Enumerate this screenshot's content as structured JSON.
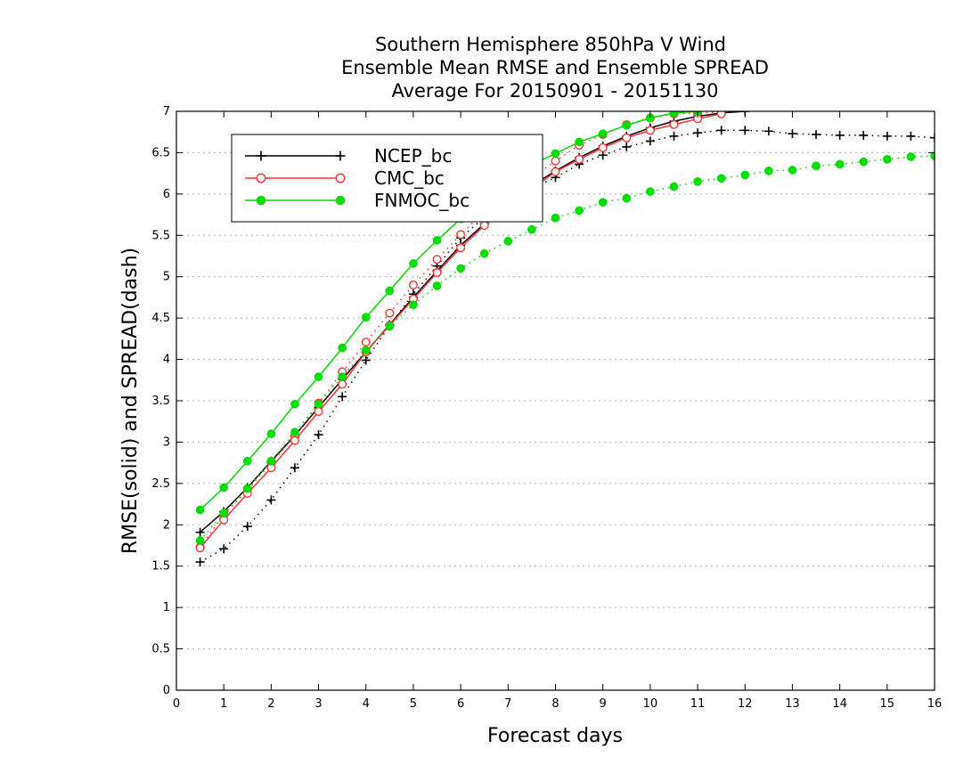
{
  "chart_data": {
    "type": "line",
    "title": [
      "Southern Hemisphere 850hPa V Wind",
      "Ensemble Mean RMSE and Ensemble SPREAD",
      "Average For 20150901 - 20151130"
    ],
    "xlabel": "Forecast days",
    "ylabel": "RMSE(solid) and SPREAD(dash)",
    "xlim": [
      0,
      16
    ],
    "ylim": [
      0,
      7
    ],
    "xticks": [
      "0",
      "1",
      "2",
      "3",
      "4",
      "5",
      "6",
      "7",
      "8",
      "9",
      "10",
      "11",
      "12",
      "13",
      "14",
      "15",
      "16"
    ],
    "yticks": [
      "0",
      "0.5",
      "1",
      "1.5",
      "2",
      "2.5",
      "3",
      "3.5",
      "4",
      "4.5",
      "5",
      "5.5",
      "6",
      "6.5",
      "7"
    ],
    "grid": "horizontal dotted",
    "legend_position": "upper-left",
    "series": [
      {
        "name": "NCEP_bc",
        "color": "#000000",
        "marker": "plus",
        "rmse": {
          "x": [
            0.5,
            1,
            1.5,
            2,
            2.5,
            3,
            3.5,
            4,
            4.5,
            5,
            5.5,
            6,
            6.5,
            7,
            7.5,
            8,
            8.5,
            9,
            9.5,
            10,
            10.5,
            11,
            11.5,
            12
          ],
          "y": [
            1.91,
            2.16,
            2.45,
            2.77,
            3.08,
            3.42,
            3.76,
            4.09,
            4.42,
            4.75,
            5.07,
            5.38,
            5.64,
            5.88,
            6.1,
            6.28,
            6.44,
            6.58,
            6.7,
            6.8,
            6.88,
            6.94,
            6.98,
            7.0
          ]
        },
        "spread": {
          "x": [
            0.5,
            1,
            1.5,
            2,
            2.5,
            3,
            3.5,
            4,
            4.5,
            5,
            5.5,
            6,
            6.5,
            7,
            7.5,
            8,
            8.5,
            9,
            9.5,
            10,
            10.5,
            11,
            11.5,
            12,
            12.5,
            13,
            13.5,
            14,
            14.5,
            15,
            15.5,
            16
          ],
          "y": [
            1.55,
            1.71,
            1.98,
            2.3,
            2.69,
            3.09,
            3.55,
            3.99,
            4.41,
            4.79,
            5.13,
            5.47,
            5.72,
            5.92,
            6.07,
            6.2,
            6.36,
            6.47,
            6.57,
            6.64,
            6.7,
            6.74,
            6.77,
            6.77,
            6.76,
            6.73,
            6.72,
            6.71,
            6.71,
            6.7,
            6.7,
            6.68
          ]
        }
      },
      {
        "name": "CMC_bc",
        "color": "#ff3333",
        "marker": "open-circle",
        "rmse": {
          "x": [
            0.5,
            1,
            1.5,
            2,
            2.5,
            3,
            3.5,
            4,
            4.5,
            5,
            5.5,
            6,
            6.5,
            7,
            7.5,
            8,
            8.5,
            9,
            9.5,
            10,
            10.5,
            11,
            11.5
          ],
          "y": [
            1.72,
            2.06,
            2.38,
            2.69,
            3.02,
            3.37,
            3.7,
            4.09,
            4.41,
            4.73,
            5.05,
            5.35,
            5.62,
            5.84,
            6.06,
            6.27,
            6.42,
            6.56,
            6.68,
            6.77,
            6.84,
            6.91,
            6.97
          ]
        },
        "spread": {
          "x": [
            0.5,
            1,
            1.5,
            2,
            2.5,
            3,
            3.5,
            4,
            4.5,
            5,
            5.5,
            6,
            6.5,
            7,
            7.5,
            8,
            8.5,
            9,
            9.5,
            10,
            10.5,
            11,
            11.5
          ],
          "y": [
            1.73,
            2.12,
            2.42,
            2.75,
            3.07,
            3.47,
            3.85,
            4.21,
            4.56,
            4.9,
            5.21,
            5.51,
            5.79,
            6.03,
            6.2,
            6.4,
            6.59,
            6.72,
            6.84,
            6.92,
            6.97,
            6.98,
            6.99
          ]
        }
      },
      {
        "name": "FNMOC_bc",
        "color": "#00dd00",
        "marker": "filled-circle",
        "rmse": {
          "x": [
            0.5,
            1,
            1.5,
            2,
            2.5,
            3,
            3.5,
            4,
            4.5,
            5,
            5.5,
            6,
            6.5,
            7,
            7.5,
            8,
            8.5,
            9,
            9.5,
            10,
            10.5,
            11
          ],
          "y": [
            2.18,
            2.45,
            2.77,
            3.1,
            3.46,
            3.79,
            4.14,
            4.51,
            4.83,
            5.16,
            5.44,
            5.7,
            5.95,
            6.18,
            6.36,
            6.49,
            6.63,
            6.73,
            6.83,
            6.92,
            6.98,
            7.0
          ]
        },
        "spread": {
          "x": [
            0.5,
            1,
            1.5,
            2,
            2.5,
            3,
            3.5,
            4,
            4.5,
            5,
            5.5,
            6,
            6.5,
            7,
            7.5,
            8,
            8.5,
            9,
            9.5,
            10,
            10.5,
            11,
            11.5,
            12,
            12.5,
            13,
            13.5,
            14,
            14.5,
            15,
            15.5,
            16
          ],
          "y": [
            1.81,
            2.14,
            2.44,
            2.77,
            3.12,
            3.46,
            3.79,
            4.11,
            4.4,
            4.66,
            4.89,
            5.1,
            5.28,
            5.43,
            5.57,
            5.71,
            5.8,
            5.9,
            5.95,
            6.03,
            6.09,
            6.15,
            6.19,
            6.23,
            6.28,
            6.29,
            6.34,
            6.36,
            6.39,
            6.42,
            6.45,
            6.46
          ]
        }
      }
    ]
  }
}
